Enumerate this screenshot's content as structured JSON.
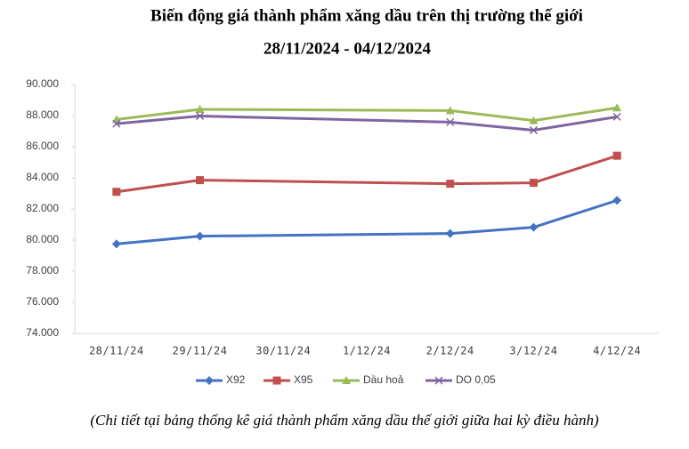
{
  "chart_data": {
    "type": "line",
    "title": "Biến động giá thành phẩm xăng dầu trên thị trường thế giới",
    "subtitle": "28/11/2024 - 04/12/2024",
    "caption": "(Chi tiết tại bảng thống kê giá thành phẩm xăng dầu thế giới giữa hai kỳ điều hành)",
    "categories": [
      "28/11/24",
      "29/11/24",
      "30/11/24",
      "1/12/24",
      "2/12/24",
      "3/12/24",
      "4/12/24"
    ],
    "connect_gaps": true,
    "series": [
      {
        "name": "X92",
        "color": "#4472c4",
        "marker": "diamond",
        "values": [
          79750,
          80250,
          null,
          null,
          80420,
          80820,
          82550
        ]
      },
      {
        "name": "X95",
        "color": "#c0504d",
        "marker": "square",
        "values": [
          83100,
          83850,
          null,
          null,
          83620,
          83680,
          85420
        ]
      },
      {
        "name": "Dầu hoả",
        "color": "#9bbb59",
        "marker": "triangle",
        "values": [
          87750,
          88400,
          null,
          null,
          88320,
          87680,
          88500
        ]
      },
      {
        "name": "DO 0,05",
        "color": "#8064a2",
        "marker": "x",
        "values": [
          87480,
          87970,
          null,
          null,
          87580,
          87060,
          87920
        ]
      }
    ],
    "ylim": [
      74000,
      90000
    ],
    "yticks": [
      {
        "value": 74000,
        "label": "74.000"
      },
      {
        "value": 76000,
        "label": "76.000"
      },
      {
        "value": 78000,
        "label": "78.000"
      },
      {
        "value": 80000,
        "label": "80.000"
      },
      {
        "value": 82000,
        "label": "82.000"
      },
      {
        "value": 84000,
        "label": "84.000"
      },
      {
        "value": 86000,
        "label": "86.000"
      },
      {
        "value": 88000,
        "label": "88.000"
      },
      {
        "value": 90000,
        "label": "90.000"
      }
    ],
    "grid": false,
    "legend": "bottom"
  }
}
